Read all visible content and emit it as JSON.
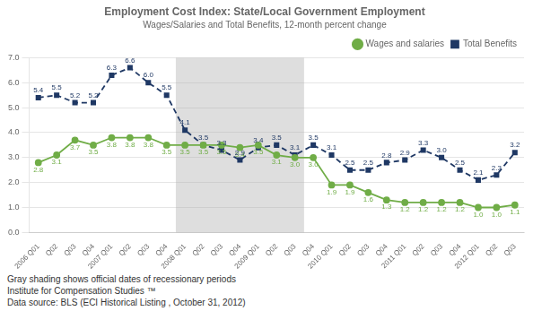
{
  "chart_data": {
    "type": "line",
    "title": "Employment Cost Index: State/Local Government Employment",
    "subtitle": "Wages/Salaries and Total Benefits, 12-month percent change",
    "categories": [
      "2006 Q01",
      "Q02",
      "Q03",
      "Q04",
      "2007 Q01",
      "Q02",
      "Q03",
      "Q04",
      "2008 Q01",
      "Q02",
      "Q03",
      "Q04",
      "2009 Q01",
      "Q02",
      "Q03",
      "Q04",
      "2010 Q01",
      "Q02",
      "Q03",
      "Q04",
      "2011 Q01",
      "Q02",
      "Q03",
      "Q04",
      "2012 Q01",
      "Q02",
      "Q03"
    ],
    "series": [
      {
        "name": "Wages and salaries",
        "color": "#70ad47",
        "marker": "circle",
        "line_style": "solid",
        "values": [
          2.8,
          3.1,
          3.7,
          3.5,
          3.8,
          3.8,
          3.8,
          3.5,
          3.5,
          3.5,
          3.5,
          3.4,
          3.5,
          3.1,
          3.0,
          3.0,
          1.9,
          1.9,
          1.6,
          1.3,
          1.2,
          1.2,
          1.2,
          1.2,
          1.0,
          1.0,
          1.1
        ],
        "value_labels": [
          "2.8",
          "3.1",
          "3.7",
          "3.5",
          "3.8",
          "3.8",
          "3.8",
          "3.5",
          "3.5",
          "3.5",
          "3.5",
          "3.4",
          "3.5",
          "3.1",
          "3.0",
          "3.0",
          "1.9",
          "1.9",
          "1.6",
          "1.3",
          "1.2",
          "1.2",
          "1.2",
          "1.2",
          "1.0",
          "1.0",
          "1.1"
        ]
      },
      {
        "name": "Total Benefits",
        "color": "#1f3864",
        "marker": "square",
        "line_style": "dashed",
        "values": [
          5.4,
          5.5,
          5.2,
          5.2,
          6.3,
          6.6,
          6.0,
          5.5,
          4.1,
          3.5,
          3.3,
          2.9,
          3.4,
          3.5,
          3.1,
          3.5,
          3.1,
          2.5,
          2.5,
          2.8,
          2.9,
          3.3,
          3.0,
          2.5,
          2.1,
          2.3,
          3.2
        ],
        "value_labels": [
          "5.4",
          "5.5",
          "5.2",
          "5.2",
          "6.3",
          "6.6",
          "6.0",
          "5.5",
          "4.1",
          "3.5",
          "3.3",
          "2.9",
          "3.4",
          "3.5",
          "3.1",
          "3.5",
          "3.1",
          "2.5",
          "2.5",
          "2.8",
          "2.9",
          "3.3",
          "3.0",
          "2.5",
          "2.1",
          "2.3",
          "3.2"
        ]
      }
    ],
    "shading": [
      7.5,
      14.5
    ],
    "ylim": [
      0.0,
      7.0
    ],
    "yticks": [
      {
        "value": 0,
        "label": "0.0"
      },
      {
        "value": 1,
        "label": "1.0"
      },
      {
        "value": 2,
        "label": "2.0"
      },
      {
        "value": 3,
        "label": "3.0"
      },
      {
        "value": 4,
        "label": "4.0"
      },
      {
        "value": 5,
        "label": "5.0"
      },
      {
        "value": 6,
        "label": "6.0"
      },
      {
        "value": 7,
        "label": "7.0"
      }
    ],
    "grid": true,
    "legend": "upper right",
    "data_labels": true,
    "footnotes": [
      "Gray shading shows official dates of recessionary periods",
      "Institute for Compensation Studies ™",
      "Data source: BLS (ECI Historical Listing , October 31, 2012)"
    ]
  }
}
